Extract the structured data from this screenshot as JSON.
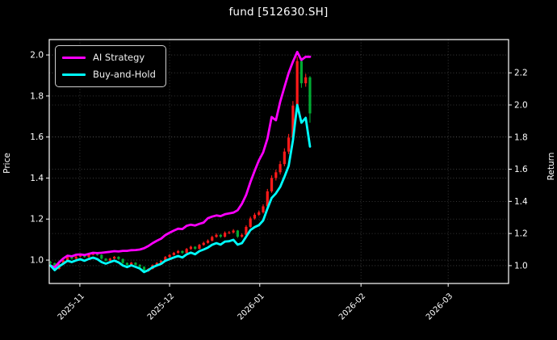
{
  "window_title": "fund [512630.SH]",
  "chart_data": {
    "type": "candlestick_with_lines",
    "title": "fund [512630.SH]",
    "axes": {
      "ylabel_left": "Price",
      "ylabel_right": "Return",
      "y_ticks_left": [
        "1.0",
        "1.2",
        "1.4",
        "1.6",
        "1.8",
        "2.0"
      ],
      "y_ticks_right": [
        "1.0",
        "1.2",
        "1.4",
        "1.6",
        "1.8",
        "2.0",
        "2.2"
      ],
      "y_left_range": [
        0.886,
        2.075
      ],
      "y_right_range": [
        0.889,
        2.407
      ],
      "x_index_range": [
        -0.3,
        107.7
      ],
      "x_ticks": [
        {
          "label": "2025-11",
          "index": 6.9
        },
        {
          "label": "2025-12",
          "index": 28.0
        },
        {
          "label": "2026-01",
          "index": 49.2
        },
        {
          "label": "2026-02",
          "index": 73.0
        },
        {
          "label": "2026-03",
          "index": 93.5
        }
      ],
      "grid": true
    },
    "legend": [
      {
        "label": "AI Strategy",
        "color": "#ff00ff"
      },
      {
        "label": "Buy-and-Hold",
        "color": "#00ffff"
      }
    ],
    "colors": {
      "background": "#000000",
      "foreground": "#ffffff",
      "grid": "#9a9a9a",
      "candle_up": "#ff1a1a",
      "candle_down": "#00aa33",
      "ai_line": "#ff00ff",
      "bh_line": "#00ffff"
    },
    "columns": [
      "date",
      "open",
      "high",
      "low",
      "close",
      "ai_strategy_return",
      "buy_and_hold_return"
    ],
    "days": [
      [
        "2025-10-23",
        0.99,
        0.996,
        0.978,
        0.985,
        1.0,
        1.0
      ],
      [
        "2025-10-24",
        0.985,
        0.988,
        0.953,
        0.957,
        0.99,
        0.972
      ],
      [
        "2025-10-27",
        0.957,
        0.984,
        0.954,
        0.98,
        1.02,
        0.995
      ],
      [
        "2025-10-28",
        0.98,
        1.001,
        0.977,
        0.997,
        1.045,
        1.012
      ],
      [
        "2025-10-29",
        0.997,
        1.019,
        0.994,
        1.015,
        1.062,
        1.03
      ],
      [
        "2025-10-30",
        1.015,
        1.018,
        1.002,
        1.007,
        1.058,
        1.022
      ],
      [
        "2025-10-31",
        1.007,
        1.021,
        1.004,
        1.017,
        1.068,
        1.033
      ],
      [
        "2025-11-03",
        1.017,
        1.029,
        1.014,
        1.024,
        1.07,
        1.04
      ],
      [
        "2025-11-04",
        1.024,
        1.027,
        1.011,
        1.015,
        1.066,
        1.03
      ],
      [
        "2025-11-05",
        1.015,
        1.03,
        1.012,
        1.026,
        1.073,
        1.042
      ],
      [
        "2025-11-06",
        1.026,
        1.039,
        1.023,
        1.034,
        1.08,
        1.05
      ],
      [
        "2025-11-07",
        1.034,
        1.037,
        1.021,
        1.025,
        1.078,
        1.041
      ],
      [
        "2025-11-10",
        1.025,
        1.028,
        1.003,
        1.007,
        1.08,
        1.022
      ],
      [
        "2025-11-11",
        1.007,
        1.01,
        0.993,
        0.997,
        1.083,
        1.012
      ],
      [
        "2025-11-12",
        0.997,
        1.011,
        0.994,
        1.007,
        1.086,
        1.022
      ],
      [
        "2025-11-13",
        1.007,
        1.02,
        1.004,
        1.016,
        1.09,
        1.031
      ],
      [
        "2025-11-14",
        1.016,
        1.019,
        1.001,
        1.005,
        1.088,
        1.02
      ],
      [
        "2025-11-17",
        1.005,
        1.008,
        0.982,
        0.986,
        1.092,
        1.001
      ],
      [
        "2025-11-18",
        0.986,
        0.989,
        0.972,
        0.976,
        1.092,
        0.991
      ],
      [
        "2025-11-19",
        0.976,
        0.991,
        0.973,
        0.987,
        1.096,
        1.002
      ],
      [
        "2025-11-20",
        0.987,
        0.99,
        0.973,
        0.977,
        1.097,
        0.992
      ],
      [
        "2025-11-21",
        0.977,
        0.98,
        0.962,
        0.967,
        1.1,
        0.982
      ],
      [
        "2025-11-24",
        0.967,
        0.97,
        0.941,
        0.946,
        1.108,
        0.96
      ],
      [
        "2025-11-25",
        0.946,
        0.961,
        0.943,
        0.957,
        1.122,
        0.972
      ],
      [
        "2025-11-26",
        0.957,
        0.979,
        0.954,
        0.975,
        1.14,
        0.99
      ],
      [
        "2025-11-27",
        0.975,
        0.99,
        0.972,
        0.986,
        1.155,
        1.001
      ],
      [
        "2025-11-28",
        0.986,
        1.0,
        0.983,
        0.996,
        1.168,
        1.011
      ],
      [
        "2025-12-01",
        0.996,
        1.02,
        0.993,
        1.015,
        1.19,
        1.03
      ],
      [
        "2025-12-02",
        1.015,
        1.03,
        1.012,
        1.025,
        1.205,
        1.041
      ],
      [
        "2025-12-03",
        1.025,
        1.04,
        1.022,
        1.035,
        1.218,
        1.051
      ],
      [
        "2025-12-04",
        1.035,
        1.049,
        1.031,
        1.044,
        1.23,
        1.06
      ],
      [
        "2025-12-05",
        1.044,
        1.047,
        1.03,
        1.035,
        1.228,
        1.051
      ],
      [
        "2025-12-08",
        1.035,
        1.059,
        1.032,
        1.054,
        1.248,
        1.07
      ],
      [
        "2025-12-09",
        1.054,
        1.07,
        1.05,
        1.065,
        1.255,
        1.081
      ],
      [
        "2025-12-10",
        1.065,
        1.068,
        1.05,
        1.055,
        1.25,
        1.071
      ],
      [
        "2025-12-11",
        1.055,
        1.079,
        1.052,
        1.074,
        1.26,
        1.09
      ],
      [
        "2025-12-12",
        1.074,
        1.09,
        1.07,
        1.084,
        1.268,
        1.1
      ],
      [
        "2025-12-15",
        1.084,
        1.101,
        1.08,
        1.095,
        1.295,
        1.112
      ],
      [
        "2025-12-16",
        1.095,
        1.119,
        1.091,
        1.113,
        1.305,
        1.13
      ],
      [
        "2025-12-17",
        1.113,
        1.13,
        1.109,
        1.123,
        1.312,
        1.14
      ],
      [
        "2025-12-18",
        1.123,
        1.127,
        1.108,
        1.114,
        1.308,
        1.131
      ],
      [
        "2025-12-19",
        1.114,
        1.14,
        1.11,
        1.133,
        1.32,
        1.15
      ],
      [
        "2025-12-22",
        1.133,
        1.142,
        1.127,
        1.135,
        1.325,
        1.152
      ],
      [
        "2025-12-23",
        1.135,
        1.151,
        1.13,
        1.144,
        1.33,
        1.161
      ],
      [
        "2025-12-24",
        1.144,
        1.147,
        1.108,
        1.114,
        1.345,
        1.131
      ],
      [
        "2025-12-25",
        1.114,
        1.13,
        1.109,
        1.123,
        1.385,
        1.14
      ],
      [
        "2025-12-26",
        1.123,
        1.17,
        1.119,
        1.162,
        1.44,
        1.18
      ],
      [
        "2025-12-29",
        1.162,
        1.212,
        1.157,
        1.203,
        1.52,
        1.221
      ],
      [
        "2025-12-30",
        1.203,
        1.23,
        1.197,
        1.221,
        1.59,
        1.24
      ],
      [
        "2025-12-31",
        1.221,
        1.242,
        1.215,
        1.233,
        1.655,
        1.252
      ],
      [
        "2026-01-01",
        1.233,
        1.272,
        1.227,
        1.262,
        1.705,
        1.281
      ],
      [
        "2026-01-02",
        1.262,
        1.347,
        1.255,
        1.335,
        1.79,
        1.355
      ],
      [
        "2026-01-05",
        1.335,
        1.413,
        1.328,
        1.4,
        1.925,
        1.421
      ],
      [
        "2026-01-06",
        1.4,
        1.441,
        1.388,
        1.428,
        1.905,
        1.45
      ],
      [
        "2026-01-07",
        1.428,
        1.483,
        1.417,
        1.468,
        2.02,
        1.49
      ],
      [
        "2026-01-08",
        1.468,
        1.545,
        1.457,
        1.529,
        2.11,
        1.552
      ],
      [
        "2026-01-09",
        1.529,
        1.615,
        1.517,
        1.597,
        2.2,
        1.621
      ],
      [
        "2026-01-12",
        1.597,
        1.775,
        1.585,
        1.753,
        2.27,
        1.78
      ],
      [
        "2026-01-13",
        1.753,
        1.992,
        1.738,
        1.97,
        2.33,
        2.0
      ],
      [
        "2026-01-14",
        1.97,
        1.981,
        1.84,
        1.862,
        2.28,
        1.89
      ],
      [
        "2026-01-15",
        1.862,
        1.908,
        1.845,
        1.891,
        2.3,
        1.92
      ],
      [
        "2026-01-16",
        1.891,
        1.897,
        1.67,
        1.715,
        2.3,
        1.741
      ]
    ]
  }
}
